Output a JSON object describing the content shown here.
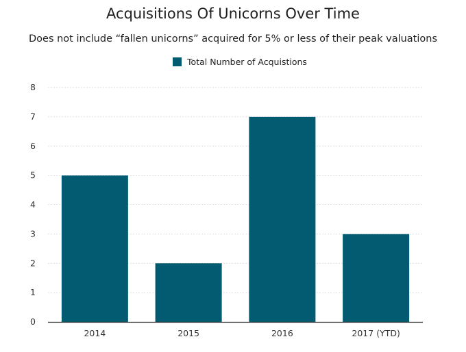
{
  "chart_data": {
    "type": "bar",
    "title": "Acquisitions Of Unicorns Over Time",
    "subtitle": "Does not include “fallen unicorns” acquired for 5% or less of their peak valuations",
    "categories": [
      "2014",
      "2015",
      "2016",
      "2017 (YTD)"
    ],
    "series": [
      {
        "name": "Total Number of Acquistions",
        "values": [
          5,
          2,
          7,
          3
        ]
      }
    ],
    "ylim": [
      0,
      8
    ],
    "yticks": [
      0,
      1,
      2,
      3,
      4,
      5,
      6,
      7,
      8
    ],
    "grid": true,
    "legend_position": "top",
    "colors": {
      "bar": "#025b70",
      "grid": "#dddddd",
      "axis": "#333333"
    }
  }
}
